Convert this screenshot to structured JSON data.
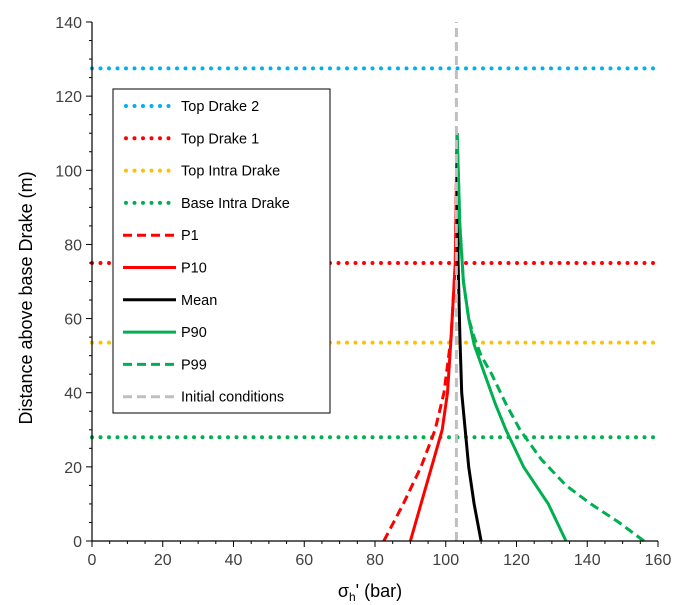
{
  "chart_data": {
    "type": "line",
    "title": "",
    "xlabel_base": "σ",
    "xlabel_sub": "h",
    "xlabel_suffix": "' (bar)",
    "ylabel": "Distance above base Drake (m)",
    "xlim": [
      0,
      160
    ],
    "ylim": [
      0,
      140
    ],
    "xticks": [
      0,
      20,
      40,
      60,
      80,
      100,
      120,
      140,
      160
    ],
    "yticks": [
      0,
      20,
      40,
      60,
      80,
      100,
      120,
      140
    ],
    "grid": false,
    "legend_position": "upper-left",
    "horizontal_markers": [
      {
        "name": "Top Drake 2",
        "y": 127.5,
        "color": "#00b0f0"
      },
      {
        "name": "Top Drake 1",
        "y": 75,
        "color": "#ff0000"
      },
      {
        "name": "Top Intra Drake",
        "y": 53.5,
        "color": "#ffc000"
      },
      {
        "name": "Base Intra Drake",
        "y": 28,
        "color": "#00b050"
      }
    ],
    "series": [
      {
        "name": "P1",
        "color": "#ff0000",
        "style": "dashed",
        "x": [
          82.5,
          88,
          93,
          97,
          99.5,
          101.5,
          102.7,
          103.2
        ],
        "y": [
          0,
          10,
          20,
          30,
          40,
          55,
          75,
          110
        ]
      },
      {
        "name": "P10",
        "color": "#ff0000",
        "style": "solid",
        "x": [
          90,
          93,
          96,
          99,
          100.5,
          101.5,
          102.7,
          103.2
        ],
        "y": [
          0,
          10,
          20,
          30,
          40,
          55,
          75,
          110
        ]
      },
      {
        "name": "Mean",
        "color": "#000000",
        "style": "solid",
        "x": [
          110,
          108,
          106.5,
          105.5,
          104.5,
          104,
          103.5,
          103.2
        ],
        "y": [
          0,
          10,
          20,
          30,
          40,
          55,
          75,
          110
        ]
      },
      {
        "name": "P90",
        "color": "#00b050",
        "style": "solid",
        "x": [
          134,
          129,
          122,
          117,
          114,
          111,
          108,
          106.5,
          105,
          104,
          103.2
        ],
        "y": [
          0,
          10,
          20,
          30,
          37,
          45,
          53,
          60,
          70,
          85,
          110
        ]
      },
      {
        "name": "P99",
        "color": "#00b050",
        "style": "dashed",
        "x": [
          156,
          149,
          141,
          134,
          127,
          121,
          117,
          113,
          110,
          108,
          106.5,
          105,
          104,
          103.2
        ],
        "y": [
          0,
          5,
          10,
          15,
          22,
          30,
          37,
          45,
          50,
          55,
          60,
          70,
          85,
          110
        ]
      },
      {
        "name": "Initial conditions",
        "color": "#bfbfbf",
        "style": "dashed",
        "x": [
          103,
          103
        ],
        "y": [
          0,
          140
        ]
      }
    ]
  }
}
